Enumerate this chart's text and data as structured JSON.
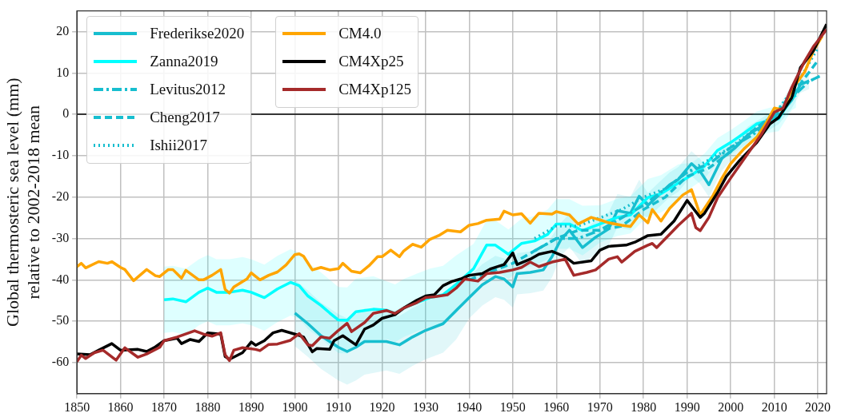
{
  "chart_data": {
    "type": "line",
    "ylabel": "Global thermosteric sea level (mm)\nrelative to 2002-2018 mean",
    "xlim": [
      1850,
      2022
    ],
    "xticks": [
      1850,
      1860,
      1870,
      1880,
      1890,
      1900,
      1910,
      1920,
      1930,
      1940,
      1950,
      1960,
      1970,
      1980,
      1990,
      2000,
      2010,
      2020
    ],
    "ylim": [
      -67.5,
      25
    ],
    "yticks": [
      -60,
      -50,
      -40,
      -30,
      -20,
      -10,
      0,
      10,
      20
    ],
    "grid": true,
    "legend": "top left",
    "ref_lines": [
      {
        "axis": "y",
        "value": 0,
        "color": "#000000"
      }
    ],
    "series": [
      {
        "name": "Frederikse2020",
        "color": "#17becf",
        "line_style": "solid",
        "x": [
          1900,
          1903,
          1906,
          1910,
          1912,
          1914,
          1916,
          1921,
          1924,
          1927,
          1930,
          1934,
          1937,
          1940,
          1943,
          1946,
          1948,
          1950,
          1951,
          1954,
          1957,
          1959,
          1961,
          1963,
          1966,
          1969,
          1972,
          1974,
          1977,
          1979,
          1981,
          1986,
          1988,
          1991,
          1993,
          1995,
          1998,
          2001,
          2004,
          2008,
          2011,
          2014,
          2016,
          2018
        ],
        "values": [
          -48,
          -50.6,
          -53.5,
          -56.3,
          -57.3,
          -56.3,
          -54.9,
          -54.9,
          -55.7,
          -53.8,
          -52.2,
          -50.6,
          -47.4,
          -44.3,
          -41.2,
          -39.2,
          -39.8,
          -41.7,
          -38.5,
          -38.2,
          -37.6,
          -34.4,
          -30.3,
          -28,
          -32.2,
          -29.7,
          -27.7,
          -23.3,
          -23.9,
          -19.8,
          -22,
          -17,
          -15.7,
          -11.9,
          -13.8,
          -17,
          -10.6,
          -8.1,
          -4.9,
          -2.3,
          -0.4,
          3.4,
          7.2,
          8.1
        ],
        "lower": [
          -56,
          -58.6,
          -61.5,
          -64.3,
          -65.3,
          -64.3,
          -62.9,
          -61.9,
          -62.7,
          -60.8,
          -59.2,
          -57.6,
          -54.4,
          -49.3,
          -46.2,
          -44.2,
          -44.8,
          -46.7,
          -43.5,
          -43.2,
          -42.6,
          -39.4,
          -34.3,
          -32,
          -36.2,
          -33.7,
          -31.7,
          -27.3,
          -27.9,
          -23.8,
          -25,
          -20,
          -18.7,
          -14.9,
          -16.8,
          -20,
          -13.6,
          -10.1,
          -6.9,
          -4.3,
          -2.4,
          1.4,
          5.2,
          6.1
        ],
        "upper": [
          -40,
          -42.6,
          -45.5,
          -48.3,
          -49.3,
          -48.3,
          -46.9,
          -47.9,
          -48.7,
          -46.8,
          -45.2,
          -43.6,
          -40.4,
          -39.3,
          -36.2,
          -34.2,
          -34.8,
          -36.7,
          -33.5,
          -33.2,
          -32.6,
          -29.4,
          -26.3,
          -24,
          -28.2,
          -25.7,
          -23.7,
          -19.3,
          -19.9,
          -15.8,
          -19,
          -14,
          -12.7,
          -8.9,
          -10.8,
          -14,
          -7.6,
          -6.1,
          -2.9,
          -0.3,
          1.6,
          5.4,
          9.2,
          10.1
        ]
      },
      {
        "name": "Zanna2019",
        "color": "#00ffff",
        "line_style": "solid",
        "x": [
          1870,
          1872,
          1875,
          1878,
          1880,
          1882,
          1885,
          1888,
          1890,
          1893,
          1896,
          1899,
          1901,
          1903,
          1906,
          1908,
          1910,
          1912,
          1914,
          1918,
          1921,
          1923,
          1925,
          1928,
          1931,
          1934,
          1937,
          1941,
          1944,
          1946,
          1949,
          1952,
          1955,
          1958,
          1960,
          1963,
          1966,
          1970,
          1974,
          1977,
          1981,
          1984,
          1988,
          1991,
          1994,
          1997,
          2000,
          2003,
          2006,
          2009,
          2011,
          2014,
          2015
        ],
        "values": [
          -44.8,
          -44.6,
          -45.3,
          -43,
          -42,
          -43,
          -43,
          -42.5,
          -43,
          -44.3,
          -42.2,
          -40.6,
          -41.4,
          -43.9,
          -46.2,
          -48,
          -49.7,
          -49.8,
          -47.7,
          -47.1,
          -47.3,
          -48.1,
          -46.8,
          -45.5,
          -44.3,
          -43.6,
          -41.1,
          -37.3,
          -31.6,
          -31.6,
          -33.8,
          -31.2,
          -30.6,
          -29,
          -26.5,
          -26.5,
          -28.1,
          -26.5,
          -24.9,
          -24.3,
          -20.1,
          -19.2,
          -16.6,
          -14.7,
          -12.5,
          -8.7,
          -6.8,
          -4.6,
          -2.3,
          -1.4,
          -1.1,
          4,
          4.6
        ],
        "lower": [
          -52.8,
          -52.6,
          -53.3,
          -51,
          -50,
          -51,
          -51,
          -50.5,
          -51,
          -52.3,
          -50.2,
          -48.6,
          -49.4,
          -51.9,
          -54.2,
          -56,
          -57.7,
          -57.8,
          -55.7,
          -55.1,
          -54.3,
          -55.1,
          -53.8,
          -52.5,
          -51.3,
          -50.6,
          -48.1,
          -43.3,
          -37.6,
          -37.6,
          -39.8,
          -37.2,
          -36.6,
          -35,
          -32.5,
          -32.5,
          -34.1,
          -31,
          -29.4,
          -28.8,
          -24.6,
          -23.7,
          -21.1,
          -17.7,
          -15.5,
          -11.7,
          -9.8,
          -7.6,
          -5.3,
          -4.4,
          -4.1,
          1,
          1.6
        ],
        "upper": [
          -36.8,
          -36.6,
          -37.3,
          -35,
          -34,
          -35,
          -35,
          -34.5,
          -35,
          -36.3,
          -34.2,
          -32.6,
          -33.4,
          -35.9,
          -38.2,
          -40,
          -41.7,
          -41.8,
          -39.7,
          -39.1,
          -40.3,
          -41.1,
          -39.8,
          -38.5,
          -37.3,
          -36.6,
          -34.1,
          -31.3,
          -25.6,
          -25.6,
          -27.8,
          -25.2,
          -24.6,
          -23,
          -20.5,
          -20.5,
          -22.1,
          -22,
          -20.4,
          -19.8,
          -15.6,
          -14.7,
          -12.1,
          -11.7,
          -9.5,
          -5.7,
          -3.8,
          -1.6,
          0.7,
          1.6,
          1.9,
          7,
          7.6
        ]
      },
      {
        "name": "Levitus2012",
        "color": "#17becf",
        "line_style": "dashdot",
        "x": [
          1955,
          1960,
          1965,
          1970,
          1975,
          1980,
          1985,
          1990,
          1995,
          2000,
          2005,
          2010,
          2015,
          2018,
          2021
        ],
        "values": [
          -33,
          -30,
          -30,
          -28,
          -25,
          -22,
          -18,
          -14,
          -12,
          -8,
          -5,
          -0.5,
          5,
          8,
          9.5
        ]
      },
      {
        "name": "Cheng2017",
        "color": "#17becf",
        "line_style": "dashed",
        "x": [
          1940,
          1945,
          1950,
          1955,
          1960,
          1965,
          1970,
          1975,
          1980,
          1985,
          1990,
          1995,
          2000,
          2005,
          2010,
          2015,
          2020
        ],
        "values": [
          -40,
          -38,
          -36,
          -33,
          -30,
          -28,
          -28,
          -27,
          -23,
          -20,
          -15,
          -13,
          -9,
          -4,
          0,
          6,
          13
        ]
      },
      {
        "name": "Ishii2017",
        "color": "#17becf",
        "line_style": "dotted",
        "x": [
          1955,
          1960,
          1965,
          1970,
          1975,
          1980,
          1985,
          1990,
          1995,
          2000,
          2005,
          2010,
          2015,
          2020
        ],
        "values": [
          -30,
          -27,
          -27,
          -25,
          -23,
          -20,
          -18,
          -14,
          -11,
          -8,
          -4,
          0,
          7,
          16
        ]
      },
      {
        "name": "CM4.0",
        "color": "#ffa500",
        "line_style": "solid",
        "x": [
          1850,
          1851,
          1852,
          1855,
          1857,
          1858,
          1860,
          1861,
          1863,
          1866,
          1868,
          1869,
          1871,
          1872,
          1874,
          1875,
          1878,
          1879,
          1881,
          1883,
          1884,
          1885,
          1886,
          1888,
          1889,
          1890,
          1892,
          1894,
          1896,
          1898,
          1900,
          1901,
          1902,
          1904,
          1906,
          1908,
          1910,
          1911,
          1913,
          1915,
          1917,
          1919,
          1920,
          1922,
          1924,
          1925,
          1927,
          1929,
          1931,
          1933,
          1935,
          1938,
          1940,
          1942,
          1944,
          1947,
          1948,
          1950,
          1952,
          1954,
          1956,
          1959,
          1960,
          1963,
          1965,
          1968,
          1970,
          1972,
          1975,
          1977,
          1979,
          1981,
          1982,
          1984,
          1986,
          1989,
          1991,
          1993,
          1996,
          1998,
          2000,
          2003,
          2006,
          2008,
          2010,
          2012,
          2014,
          2017,
          2019,
          2021
        ],
        "values": [
          -36.8,
          -36,
          -37.1,
          -35.6,
          -36,
          -35.6,
          -37,
          -37.5,
          -40.2,
          -37.5,
          -39,
          -39.2,
          -37.5,
          -37.5,
          -39.6,
          -37.7,
          -40,
          -40,
          -38.9,
          -37.5,
          -42.3,
          -43.2,
          -41.7,
          -40.4,
          -39.8,
          -38.3,
          -40,
          -38.9,
          -38.1,
          -36.4,
          -33.9,
          -33.7,
          -34.3,
          -37.6,
          -37,
          -37.6,
          -37.3,
          -36,
          -37.9,
          -38.3,
          -36.6,
          -34.4,
          -34.4,
          -32.8,
          -34.4,
          -33,
          -31.4,
          -32.1,
          -30.2,
          -29.3,
          -28,
          -28.4,
          -26.8,
          -26.4,
          -25.6,
          -25.3,
          -23.4,
          -24.3,
          -24,
          -26.3,
          -23.9,
          -24.1,
          -23.5,
          -24.3,
          -26.5,
          -24.9,
          -25.5,
          -26.2,
          -26.8,
          -27.1,
          -24.3,
          -26.2,
          -23,
          -25.8,
          -22.7,
          -19.5,
          -18.2,
          -24.3,
          -19.5,
          -15.4,
          -11.9,
          -8.4,
          -5.5,
          -2.3,
          1.5,
          1.1,
          5.9,
          10.3,
          15.4,
          18.9
        ]
      },
      {
        "name": "CM4Xp25",
        "color": "#000000",
        "line_style": "solid",
        "x": [
          1850,
          1853,
          1855,
          1858,
          1860,
          1864,
          1866,
          1868,
          1870,
          1873,
          1874,
          1876,
          1878,
          1880,
          1883,
          1884,
          1885,
          1888,
          1890,
          1891,
          1893,
          1895,
          1897,
          1900,
          1902,
          1904,
          1905,
          1908,
          1909,
          1911,
          1914,
          1916,
          1918,
          1920,
          1923,
          1925,
          1928,
          1930,
          1932,
          1934,
          1936,
          1938,
          1940,
          1943,
          1945,
          1948,
          1950,
          1951,
          1954,
          1956,
          1959,
          1962,
          1964,
          1968,
          1970,
          1972,
          1976,
          1978,
          1981,
          1984,
          1987,
          1990,
          1993,
          1994,
          1997,
          1999,
          2002,
          2006,
          2009,
          2011,
          2014,
          2016,
          2019,
          2022
        ],
        "values": [
          -57.9,
          -58.1,
          -57,
          -55.4,
          -57,
          -56.8,
          -57.3,
          -56.2,
          -54.7,
          -54.1,
          -55.4,
          -54.4,
          -54.9,
          -52.8,
          -53.1,
          -58.5,
          -59.2,
          -57.6,
          -55,
          -55.8,
          -54.7,
          -52.8,
          -52.2,
          -53.1,
          -53.8,
          -57.4,
          -56.6,
          -56.8,
          -54.7,
          -53.5,
          -55.7,
          -51.9,
          -50.9,
          -49.3,
          -48.4,
          -46.8,
          -44.9,
          -43.9,
          -43.6,
          -41.4,
          -40.4,
          -39.8,
          -38.9,
          -38.5,
          -37.3,
          -36.3,
          -33.5,
          -36.3,
          -35,
          -33.8,
          -33.1,
          -34.4,
          -36,
          -35.4,
          -32.8,
          -31.9,
          -31.6,
          -30.9,
          -29.3,
          -29,
          -25.8,
          -20.8,
          -24.9,
          -23.9,
          -18.9,
          -15,
          -11.2,
          -6.8,
          -2.3,
          -0.8,
          4,
          11.3,
          15.4,
          21.8
        ]
      },
      {
        "name": "CM4Xp125",
        "color": "#a52a2a",
        "line_style": "solid",
        "x": [
          1850,
          1851,
          1852,
          1854,
          1856,
          1859,
          1861,
          1864,
          1866,
          1869,
          1870,
          1873,
          1877,
          1879,
          1881,
          1883,
          1884,
          1885,
          1886,
          1888,
          1891,
          1892,
          1894,
          1896,
          1899,
          1901,
          1903,
          1904,
          1906,
          1908,
          1910,
          1912,
          1913,
          1916,
          1918,
          1921,
          1923,
          1925,
          1928,
          1930,
          1932,
          1935,
          1937,
          1939,
          1942,
          1944,
          1947,
          1950,
          1952,
          1954,
          1956,
          1959,
          1962,
          1964,
          1967,
          1969,
          1972,
          1974,
          1975,
          1978,
          1981,
          1982,
          1983,
          1986,
          1988,
          1991,
          1992,
          1993,
          1995,
          1997,
          2000,
          2003,
          2007,
          2010,
          2012,
          2014,
          2017,
          2019,
          2022
        ],
        "values": [
          -59.8,
          -58.2,
          -59,
          -57.6,
          -57,
          -59.4,
          -56.4,
          -58.7,
          -57.9,
          -56.3,
          -54.7,
          -53.8,
          -52.3,
          -53.1,
          -53.6,
          -52.8,
          -58.1,
          -59.5,
          -57,
          -56.4,
          -56.8,
          -57.1,
          -55.6,
          -55.5,
          -54.6,
          -53,
          -55.7,
          -55.9,
          -53.8,
          -54.1,
          -52.2,
          -50.5,
          -52.5,
          -50.3,
          -48.1,
          -47.4,
          -48.1,
          -46.8,
          -45.5,
          -44.3,
          -44.1,
          -43.6,
          -42,
          -39.8,
          -40.3,
          -38.5,
          -38.2,
          -37.6,
          -37,
          -35.7,
          -36.8,
          -35.7,
          -35,
          -38.9,
          -38.2,
          -37.6,
          -35,
          -34.4,
          -35.7,
          -33.1,
          -31.6,
          -31.2,
          -32.2,
          -29,
          -26.8,
          -23.9,
          -27.4,
          -28.1,
          -24.9,
          -20.1,
          -15.4,
          -10.9,
          -4.9,
          0.5,
          1.5,
          6.5,
          12.9,
          16.4,
          20.5
        ]
      }
    ]
  }
}
